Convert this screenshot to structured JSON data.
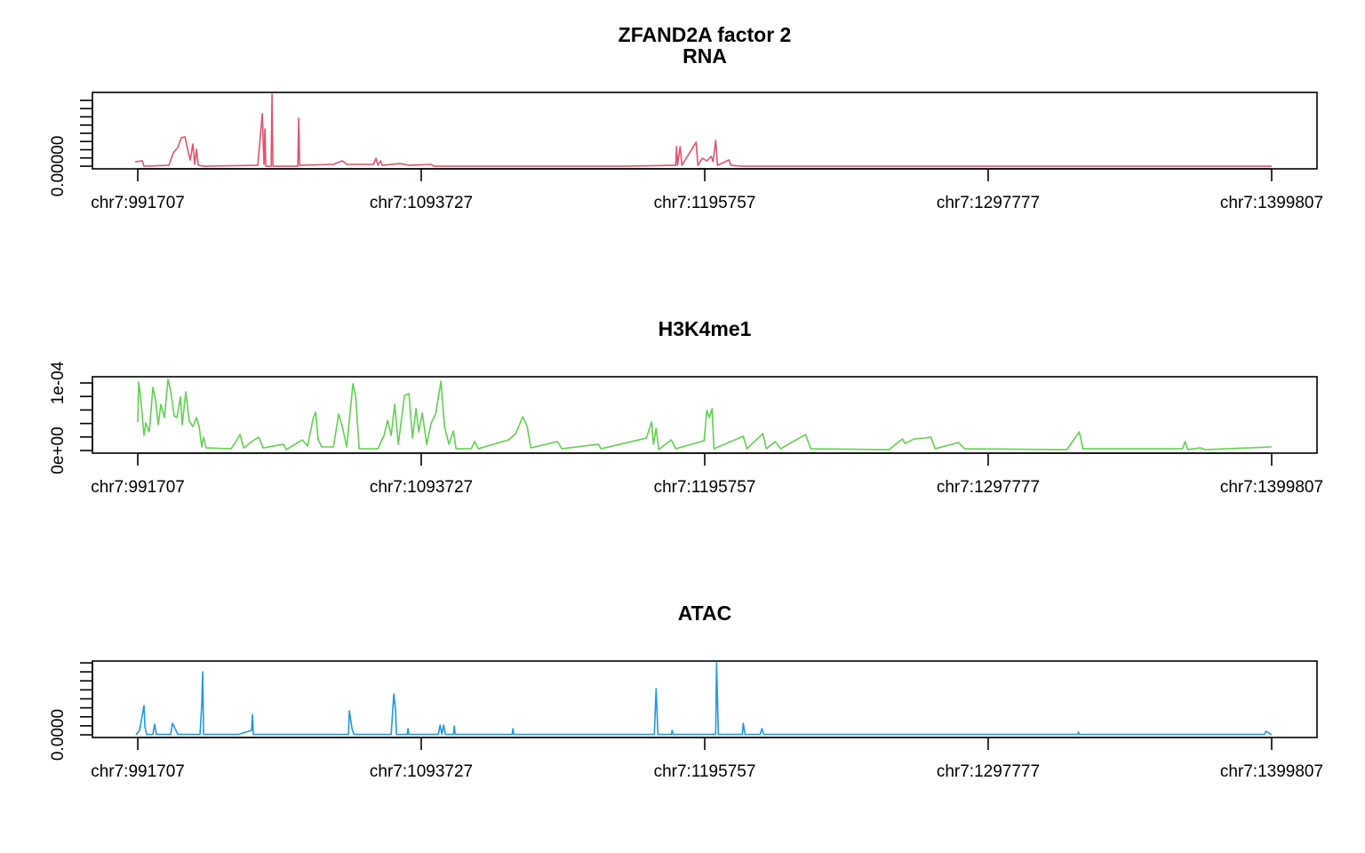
{
  "title": "ZFAND2A factor 2",
  "chart_data": [
    {
      "type": "line",
      "title": "RNA",
      "color": "#df536b",
      "xlim": [
        975383,
        1416131
      ],
      "xticks": [
        {
          "value": 991707,
          "label": "chr7:991707"
        },
        {
          "value": 1093727,
          "label": "chr7:1093727"
        },
        {
          "value": 1195757,
          "label": "chr7:1195757"
        },
        {
          "value": 1297777,
          "label": "chr7:1297777"
        },
        {
          "value": 1399807,
          "label": "chr7:1399807"
        }
      ],
      "ylim": [
        -3.2e-06,
        8.97e-05
      ],
      "yticks": [
        {
          "value": 0,
          "label": "0.00000"
        },
        {
          "value": 1e-05,
          "label": null
        },
        {
          "value": 2e-05,
          "label": null
        },
        {
          "value": 3e-05,
          "label": null
        },
        {
          "value": 4e-05,
          "label": null
        },
        {
          "value": 5e-05,
          "label": null
        },
        {
          "value": 6e-05,
          "label": null
        },
        {
          "value": 7e-05,
          "label": null
        },
        {
          "value": 8e-05,
          "label": null
        }
      ],
      "x": [
        990747,
        993307,
        993947,
        1002907,
        1004507,
        1006107,
        1007387,
        1008667,
        1009947,
        1010587,
        1011547,
        1012187,
        1012827,
        1013467,
        1015707,
        1034907,
        1036507,
        1037147,
        1037467,
        1037787,
        1039707,
        1040027,
        1040347,
        1049307,
        1049627,
        1049947,
        1062107,
        1065307,
        1066907,
        1076507,
        1077467,
        1078107,
        1079067,
        1079707,
        1086107,
        1089307,
        1097307,
        1098267,
        1166107,
        1185307,
        1185627,
        1185947,
        1186907,
        1187547,
        1192667,
        1193307,
        1194907,
        1196507,
        1198107,
        1198747,
        1199707,
        1200347,
        1204507,
        1205147,
        1209307,
        1399807
      ],
      "values": [
        5.4e-06,
        6.5e-06,
        0,
        1.1e-06,
        1.62e-05,
        2.27e-05,
        3.46e-05,
        3.57e-05,
        1.62e-05,
        7.6e-06,
        2.7e-05,
        2.2e-06,
        2.05e-05,
        1.1e-06,
        0,
        1.1e-06,
        6.38e-05,
        2.2e-06,
        4.54e-05,
        0,
        0,
        8.76e-05,
        0,
        0,
        5.84e-05,
        1.1e-06,
        2.2e-06,
        6.5e-06,
        2.2e-06,
        2.2e-06,
        9.7e-06,
        1.1e-06,
        6.5e-06,
        1.1e-06,
        3.2e-06,
        1.1e-06,
        2.2e-06,
        0,
        0,
        1.1e-06,
        2.38e-05,
        1.1e-06,
        2.38e-05,
        1.1e-06,
        2.92e-05,
        1.1e-06,
        9.7e-06,
        6.5e-06,
        1.19e-05,
        5.4e-06,
        3.13e-05,
        1.1e-06,
        7.6e-06,
        1.1e-06,
        0,
        0
      ]
    },
    {
      "type": "line",
      "title": "H3K4me1",
      "color": "#61d04f",
      "xlim": [
        975383,
        1416131
      ],
      "xticks": [
        {
          "value": 991707,
          "label": "chr7:991707"
        },
        {
          "value": 1093727,
          "label": "chr7:1093727"
        },
        {
          "value": 1195757,
          "label": "chr7:1195757"
        },
        {
          "value": 1297777,
          "label": "chr7:1297777"
        },
        {
          "value": 1399807,
          "label": "chr7:1399807"
        }
      ],
      "ylim": [
        -3.9e-06,
        0.0001092
      ],
      "yticks": [
        {
          "value": 0,
          "label": "0e+00"
        },
        {
          "value": 2e-05,
          "label": null
        },
        {
          "value": 4e-05,
          "label": null
        },
        {
          "value": 6e-05,
          "label": null
        },
        {
          "value": 8e-05,
          "label": null
        },
        {
          "value": 0.0001,
          "label": "1e-04"
        }
      ],
      "x": [
        991707,
        992027,
        992667,
        993947,
        994587,
        995867,
        997147,
        998107,
        999067,
        1000027,
        1001307,
        1002587,
        1003547,
        1004827,
        1005787,
        1007067,
        1007707,
        1008987,
        1010267,
        1011547,
        1012827,
        1013787,
        1014747,
        1015387,
        1016347,
        1025307,
        1027227,
        1028507,
        1029787,
        1033627,
        1035227,
        1036827,
        1044187,
        1045147,
        1050907,
        1052827,
        1054747,
        1055707,
        1056667,
        1057947,
        1062107,
        1064027,
        1065307,
        1066907,
        1069147,
        1070107,
        1071387,
        1078107,
        1080347,
        1081627,
        1082907,
        1084187,
        1085467,
        1087707,
        1089307,
        1090587,
        1091867,
        1092827,
        1094107,
        1095707,
        1097307,
        1098907,
        1100827,
        1102107,
        1103707,
        1105307,
        1106267,
        1111707,
        1112987,
        1114267,
        1125147,
        1127707,
        1130267,
        1131867,
        1133147,
        1142747,
        1144347,
        1157467,
        1158427,
        1174747,
        1175707,
        1176667,
        1177307,
        1178267,
        1179227,
        1183707,
        1185307,
        1195547,
        1196507,
        1197467,
        1198427,
        1199067,
        1209627,
        1210907,
        1216667,
        1217947,
        1221147,
        1223067,
        1232027,
        1233947,
        1262107,
        1266907,
        1267867,
        1271067,
        1274907,
        1277147,
        1278747,
        1287067,
        1289307,
        1326107,
        1330587,
        1331867,
        1367707,
        1368667,
        1369627,
        1374107,
        1376027,
        1399807
      ],
      "values": [
        4.21e-05,
        0.0001013,
        8.16e-05,
        2.24e-05,
        4.08e-05,
        2.76e-05,
        9.34e-05,
        7.5e-05,
        3.82e-05,
        6.84e-05,
        4.87e-05,
        0.0001053,
        8.82e-05,
        5.13e-05,
        4.87e-05,
        7.9e-05,
        3.82e-05,
        8.69e-05,
        4.34e-05,
        3.55e-05,
        4.87e-05,
        3.55e-05,
        5.3e-06,
        1.97e-05,
        3.9e-06,
        2.6e-06,
        1.45e-05,
        2.37e-05,
        3.9e-06,
        1.58e-05,
        1.97e-05,
        3.9e-06,
        9.2e-06,
        1.3e-06,
        1.58e-05,
        6.6e-06,
        4.61e-05,
        5.66e-05,
        1.58e-05,
        5.3e-06,
        5.3e-06,
        5.4e-05,
        3.55e-05,
        5.3e-06,
        9.87e-05,
        8.16e-05,
        2.6e-06,
        2.6e-06,
        2.24e-05,
        4.47e-05,
        2.24e-05,
        6.84e-05,
        9.2e-06,
        8.16e-05,
        8.42e-05,
        1.84e-05,
        6.19e-05,
        2.76e-05,
        5.53e-05,
        9.2e-06,
        4.08e-05,
        5.4e-05,
        0.0001026,
        3.55e-05,
        9.2e-06,
        2.9e-05,
        2.6e-06,
        2.6e-06,
        1.32e-05,
        2.6e-06,
        1.58e-05,
        2.5e-05,
        5e-05,
        3.55e-05,
        3.9e-06,
        1.32e-05,
        2.6e-06,
        9.2e-06,
        2.6e-06,
        1.84e-05,
        3.03e-05,
        4.21e-05,
        9.2e-06,
        3.29e-05,
        1.3e-06,
        1.58e-05,
        2.6e-06,
        1.45e-05,
        5.92e-05,
        4.87e-05,
        6.19e-05,
        2.6e-06,
        2.11e-05,
        2.6e-06,
        2.5e-05,
        2.6e-06,
        1.32e-05,
        2.6e-06,
        2.37e-05,
        2.6e-06,
        1.3e-06,
        1.71e-05,
        1.05e-05,
        1.71e-05,
        1.84e-05,
        1.97e-05,
        2.6e-06,
        1.18e-05,
        2.6e-06,
        1.3e-06,
        2.76e-05,
        2.6e-06,
        2.6e-06,
        1.32e-05,
        1.3e-06,
        3.9e-06,
        1.3e-06,
        5.3e-06
      ]
    },
    {
      "type": "line",
      "title": "ATAC",
      "color": "#2297e6",
      "xlim": [
        975383,
        1416131
      ],
      "xticks": [
        {
          "value": 991707,
          "label": "chr7:991707"
        },
        {
          "value": 1093727,
          "label": "chr7:1093727"
        },
        {
          "value": 1195757,
          "label": "chr7:1195757"
        },
        {
          "value": 1297777,
          "label": "chr7:1297777"
        },
        {
          "value": 1399807,
          "label": "chr7:1399807"
        }
      ],
      "ylim": [
        -0.000148,
        0.0041
      ],
      "yticks": [
        {
          "value": 0,
          "label": "0.0000"
        },
        {
          "value": 0.0005,
          "label": null
        },
        {
          "value": 0.001,
          "label": null
        },
        {
          "value": 0.0015,
          "label": null
        },
        {
          "value": 0.002,
          "label": null
        },
        {
          "value": 0.0025,
          "label": null
        },
        {
          "value": 0.003,
          "label": null
        },
        {
          "value": 0.0035,
          "label": null
        },
        {
          "value": 0.004,
          "label": null
        }
      ],
      "x": [
        991067,
        992347,
        993307,
        993947,
        994267,
        994907,
        997147,
        997787,
        998427,
        1003547,
        1004187,
        1005147,
        1006107,
        1014107,
        1014747,
        1015067,
        1015387,
        1027867,
        1032667,
        1032987,
        1033307,
        1054107,
        1067547,
        1067867,
        1068827,
        1069467,
        1082907,
        1083867,
        1084507,
        1084827,
        1088667,
        1088987,
        1089307,
        1099867,
        1100507,
        1101147,
        1101787,
        1102427,
        1105307,
        1105627,
        1105947,
        1126427,
        1126747,
        1127067,
        1177627,
        1178267,
        1178907,
        1183707,
        1184027,
        1184347,
        1199707,
        1200027,
        1200667,
        1209307,
        1209627,
        1210267,
        1215707,
        1216347,
        1216987,
        1232027,
        1329947,
        1330267,
        1330587,
        1397147,
        1397787,
        1399807
      ],
      "values": [
        0,
        0.000247,
        0.001087,
        0.00163,
        0.000445,
        2e-05,
        2e-05,
        0.000593,
        2e-05,
        2e-05,
        0.000642,
        0.000346,
        2e-05,
        2e-05,
        0.001729,
        0.003507,
        2e-05,
        2e-05,
        0.000247,
        0.001136,
        2e-05,
        2e-05,
        2e-05,
        0.001334,
        0.000346,
        2e-05,
        2e-05,
        0.002272,
        0.001334,
        2e-05,
        2e-05,
        0.000346,
        2e-05,
        2e-05,
        0.000543,
        2e-05,
        0.000543,
        2e-05,
        2e-05,
        0.000494,
        2e-05,
        2e-05,
        0.000346,
        2e-05,
        2e-05,
        0.002569,
        2e-05,
        2e-05,
        0.000247,
        2e-05,
        2e-05,
        0.004,
        2e-05,
        2e-05,
        0.000642,
        2e-05,
        2e-05,
        0.000346,
        2e-05,
        2e-05,
        2e-05,
        0.000148,
        2e-05,
        2e-05,
        0.000198,
        0
      ]
    }
  ]
}
